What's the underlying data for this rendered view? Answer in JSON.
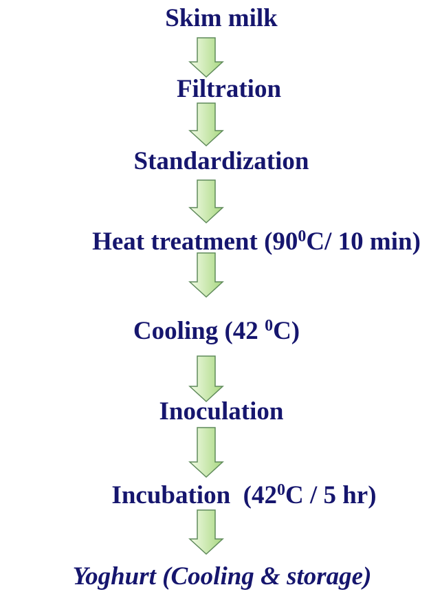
{
  "nodes": [
    {
      "parts": [
        "Skim milk"
      ]
    },
    {
      "parts": [
        "Filtration"
      ]
    },
    {
      "parts": [
        "Standardization"
      ]
    },
    {
      "parts": [
        "Heat treatment (90",
        "0",
        "C/ 10 min)"
      ]
    },
    {
      "parts": [
        "Cooling (42 ",
        "0",
        "C)"
      ]
    },
    {
      "parts": [
        "Inoculation"
      ]
    },
    {
      "parts": [
        "Incubation  (42",
        "0",
        "C / 5 hr)"
      ]
    },
    {
      "parts": [
        "Yoghurt (Cooling & storage)"
      ],
      "italic": true
    }
  ]
}
